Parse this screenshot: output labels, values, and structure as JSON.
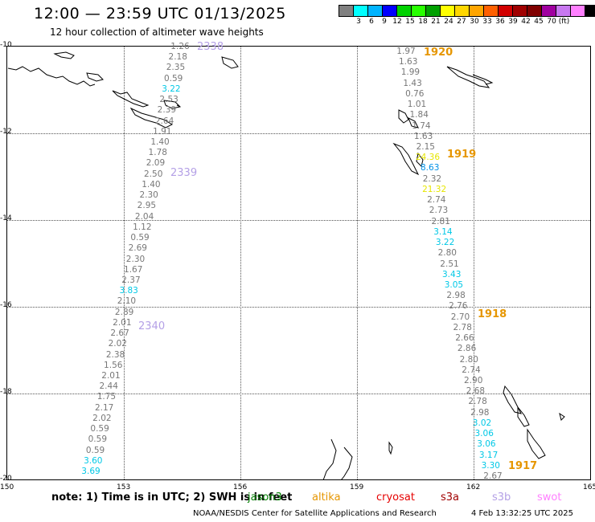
{
  "title": "12:00 — 23:59 UTC 01/13/2025",
  "subtitle": "12 hour collection of altimeter wave heights",
  "legend": {
    "colors": [
      "#808080",
      "#00ffff",
      "#00b4ff",
      "#0000ff",
      "#00d200",
      "#28ff00",
      "#00a000",
      "#ffff00",
      "#ffd700",
      "#ffa500",
      "#ff6000",
      "#d20000",
      "#a00000",
      "#800000",
      "#a000a0",
      "#c878f0",
      "#ff80ff",
      "#000000"
    ],
    "labels": [
      "3",
      "6",
      "9",
      "12",
      "15",
      "18",
      "21",
      "24",
      "27",
      "30",
      "33",
      "36",
      "39",
      "42",
      "45",
      "70 (ft)"
    ]
  },
  "axes": {
    "x_labels": [
      "150",
      "153",
      "156",
      "159",
      "162",
      "165"
    ],
    "y_labels": [
      "-10",
      "-12",
      "-14",
      "-16",
      "-18",
      "-20"
    ]
  },
  "passes": [
    {
      "label": "2338",
      "color": "#b4a0e6"
    },
    {
      "label": "2339",
      "color": "#b4a0e6"
    },
    {
      "label": "2340",
      "color": "#b4a0e6"
    },
    {
      "label": "1920",
      "color": "#e69600"
    },
    {
      "label": "1919",
      "color": "#e69600"
    },
    {
      "label": "1918",
      "color": "#e69600"
    },
    {
      "label": "1917",
      "color": "#e69600"
    }
  ],
  "track_west": [
    {
      "v": "1.26",
      "c": "#777777"
    },
    {
      "v": "2.18",
      "c": "#777777"
    },
    {
      "v": "2.35",
      "c": "#777777"
    },
    {
      "v": "0.59",
      "c": "#777777"
    },
    {
      "v": "3.22",
      "c": "#00c8e6"
    },
    {
      "v": "2.53",
      "c": "#777777"
    },
    {
      "v": "2.39",
      "c": "#777777"
    },
    {
      "v": "2.64",
      "c": "#777777"
    },
    {
      "v": "1.91",
      "c": "#777777"
    },
    {
      "v": "1.40",
      "c": "#777777"
    },
    {
      "v": "1.78",
      "c": "#777777"
    },
    {
      "v": "2.09",
      "c": "#777777"
    },
    {
      "v": "2.50",
      "c": "#777777"
    },
    {
      "v": "1.40",
      "c": "#777777"
    },
    {
      "v": "2.30",
      "c": "#777777"
    },
    {
      "v": "2.95",
      "c": "#777777"
    },
    {
      "v": "2.04",
      "c": "#777777"
    },
    {
      "v": "1.12",
      "c": "#777777"
    },
    {
      "v": "0.59",
      "c": "#777777"
    },
    {
      "v": "2.69",
      "c": "#777777"
    },
    {
      "v": "2.30",
      "c": "#777777"
    },
    {
      "v": "1.67",
      "c": "#777777"
    },
    {
      "v": "2.37",
      "c": "#777777"
    },
    {
      "v": "3.83",
      "c": "#00c8e6"
    },
    {
      "v": "2.10",
      "c": "#777777"
    },
    {
      "v": "2.89",
      "c": "#777777"
    },
    {
      "v": "2.01",
      "c": "#777777"
    },
    {
      "v": "2.67",
      "c": "#777777"
    },
    {
      "v": "2.02",
      "c": "#777777"
    },
    {
      "v": "2.38",
      "c": "#777777"
    },
    {
      "v": "1.56",
      "c": "#777777"
    },
    {
      "v": "2.01",
      "c": "#777777"
    },
    {
      "v": "2.44",
      "c": "#777777"
    },
    {
      "v": "1.75",
      "c": "#777777"
    },
    {
      "v": "2.17",
      "c": "#777777"
    },
    {
      "v": "2.02",
      "c": "#777777"
    },
    {
      "v": "0.59",
      "c": "#777777"
    },
    {
      "v": "0.59",
      "c": "#777777"
    },
    {
      "v": "0.59",
      "c": "#777777"
    },
    {
      "v": "3.60",
      "c": "#00c8e6"
    },
    {
      "v": "3.69",
      "c": "#00c8e6"
    }
  ],
  "track_east": [
    {
      "v": "1.97",
      "c": "#777777"
    },
    {
      "v": "1.63",
      "c": "#777777"
    },
    {
      "v": "1.99",
      "c": "#777777"
    },
    {
      "v": "1.43",
      "c": "#777777"
    },
    {
      "v": "0.76",
      "c": "#777777"
    },
    {
      "v": "1.01",
      "c": "#777777"
    },
    {
      "v": "1.84",
      "c": "#777777"
    },
    {
      "v": "1.74",
      "c": "#777777"
    },
    {
      "v": "1.63",
      "c": "#777777"
    },
    {
      "v": "2.15",
      "c": "#777777"
    },
    {
      "v": "24.36",
      "c": "#e6e600"
    },
    {
      "v": "8.63",
      "c": "#0090e6"
    },
    {
      "v": "2.32",
      "c": "#777777"
    },
    {
      "v": "21.32",
      "c": "#e6e600"
    },
    {
      "v": "2.74",
      "c": "#777777"
    },
    {
      "v": "2.73",
      "c": "#777777"
    },
    {
      "v": "2.81",
      "c": "#777777"
    },
    {
      "v": "3.14",
      "c": "#00c8e6"
    },
    {
      "v": "3.22",
      "c": "#00c8e6"
    },
    {
      "v": "2.80",
      "c": "#777777"
    },
    {
      "v": "2.51",
      "c": "#777777"
    },
    {
      "v": "3.43",
      "c": "#00c8e6"
    },
    {
      "v": "3.05",
      "c": "#00c8e6"
    },
    {
      "v": "2.98",
      "c": "#777777"
    },
    {
      "v": "2.76",
      "c": "#777777"
    },
    {
      "v": "2.70",
      "c": "#777777"
    },
    {
      "v": "2.78",
      "c": "#777777"
    },
    {
      "v": "2.66",
      "c": "#777777"
    },
    {
      "v": "2.86",
      "c": "#777777"
    },
    {
      "v": "2.80",
      "c": "#777777"
    },
    {
      "v": "2.74",
      "c": "#777777"
    },
    {
      "v": "2.90",
      "c": "#777777"
    },
    {
      "v": "2.68",
      "c": "#777777"
    },
    {
      "v": "2.78",
      "c": "#777777"
    },
    {
      "v": "2.98",
      "c": "#777777"
    },
    {
      "v": "3.02",
      "c": "#00c8e6"
    },
    {
      "v": "3.06",
      "c": "#00c8e6"
    },
    {
      "v": "3.06",
      "c": "#00c8e6"
    },
    {
      "v": "3.17",
      "c": "#00c8e6"
    },
    {
      "v": "3.30",
      "c": "#00c8e6"
    },
    {
      "v": "2.67",
      "c": "#777777"
    }
  ],
  "note": "note:  1) Time is in UTC; 2) SWH is in feet",
  "satellites": [
    {
      "name": "jason3",
      "color": "#008000"
    },
    {
      "name": "altika",
      "color": "#e69600"
    },
    {
      "name": "cryosat",
      "color": "#e60000"
    },
    {
      "name": "s3a",
      "color": "#a00000"
    },
    {
      "name": "s3b",
      "color": "#b4a0e6"
    },
    {
      "name": "swot",
      "color": "#ff80ff"
    }
  ],
  "footer_left": "NOAA/NESDIS Center for Satellite Applications and Research",
  "footer_right": "4 Feb 13:32:25 UTC 2025"
}
